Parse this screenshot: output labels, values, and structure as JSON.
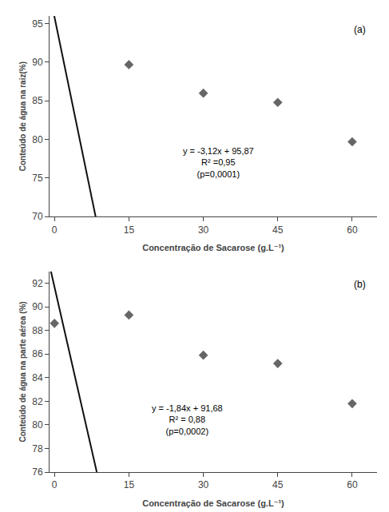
{
  "chart_data": [
    {
      "type": "scatter",
      "xlabel": "Concentração de Sacarose (g.L⁻¹)",
      "ylabel": "Conteúdo de água na raiz(%)",
      "xlim": [
        -1,
        65
      ],
      "ylim": [
        70,
        96
      ],
      "xticks": [
        0,
        15,
        30,
        45,
        60
      ],
      "yticks": [
        70,
        75,
        80,
        85,
        90,
        95
      ],
      "grid": false,
      "series": [
        {
          "type": "scatter",
          "marker": "diamond",
          "color": "#666666",
          "x": [
            15,
            30,
            45,
            60
          ],
          "values": [
            89.7,
            86.0,
            84.8,
            79.7
          ]
        },
        {
          "type": "line",
          "color": "#111111",
          "x": [
            -0.0416666667,
            8.2916666667
          ],
          "values": [
            96,
            70
          ]
        }
      ],
      "annotations": [
        [
          "y = -3,12x + 95,87",
          "R² =0,95",
          "(p=0,0001)"
        ],
        [
          "(a)"
        ]
      ]
    },
    {
      "type": "scatter",
      "xlabel": "Concentração de Sacarose (g.L⁻¹)",
      "ylabel": "Conteúdo de água na parte aérea (%)",
      "xlim": [
        -1,
        65
      ],
      "ylim": [
        76,
        93
      ],
      "xticks": [
        0,
        15,
        30,
        45,
        60
      ],
      "yticks": [
        76,
        78,
        80,
        82,
        84,
        86,
        88,
        90,
        92
      ],
      "grid": false,
      "series": [
        {
          "type": "scatter",
          "marker": "diamond",
          "color": "#666666",
          "x": [
            0,
            15,
            30,
            45,
            60
          ],
          "values": [
            88.6,
            89.3,
            85.9,
            85.2,
            81.8
          ]
        },
        {
          "type": "line",
          "color": "#111111",
          "x": [
            -0.7173913043,
            8.5217391304
          ],
          "values": [
            93,
            76
          ]
        }
      ],
      "annotations": [
        [
          "y = -1,84x + 91,68",
          "R² = 0,88",
          "(p=0,0002)"
        ],
        [
          "(b)"
        ]
      ]
    }
  ]
}
